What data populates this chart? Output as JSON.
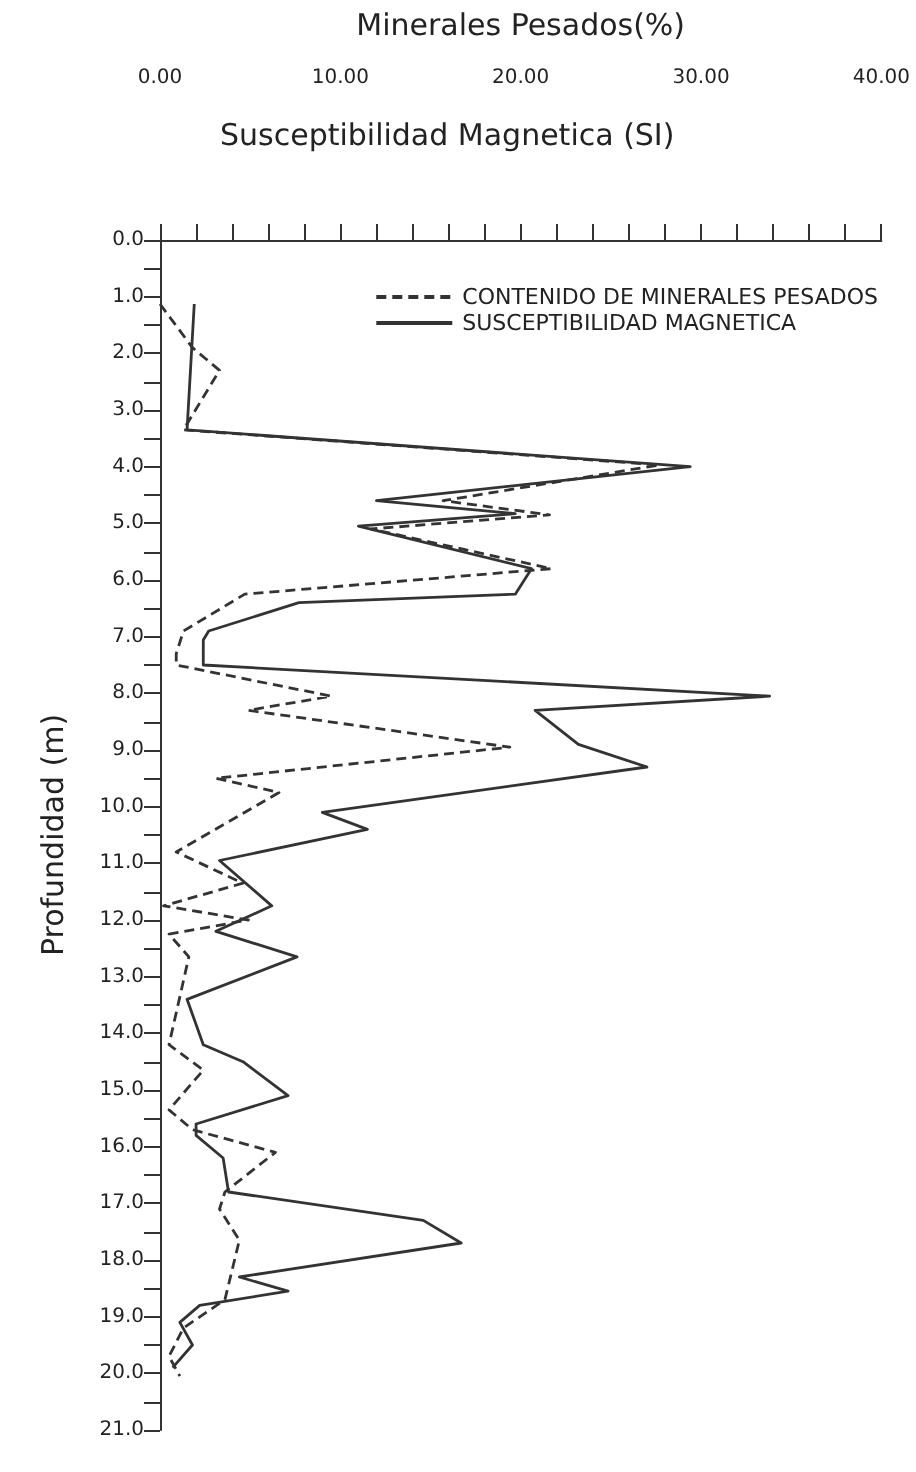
{
  "chart_data": {
    "type": "line",
    "orientation": "horizontal",
    "xlabel": "Minerales Pesados(%)",
    "ylabel": "Profundidad (m)",
    "annotations": [
      "Susceptibilidad Magnetica (SI)"
    ],
    "xlim": [
      0,
      40
    ],
    "ylim": [
      21,
      0
    ],
    "xticks": [
      {
        "value": 0,
        "label": "0.00"
      },
      {
        "value": 2,
        "label": null
      },
      {
        "value": 4,
        "label": null
      },
      {
        "value": 6,
        "label": null
      },
      {
        "value": 8,
        "label": null
      },
      {
        "value": 10,
        "label": "10.00"
      },
      {
        "value": 12,
        "label": null
      },
      {
        "value": 14,
        "label": null
      },
      {
        "value": 16,
        "label": null
      },
      {
        "value": 18,
        "label": null
      },
      {
        "value": 20,
        "label": "20.00"
      },
      {
        "value": 22,
        "label": null
      },
      {
        "value": 24,
        "label": null
      },
      {
        "value": 26,
        "label": null
      },
      {
        "value": 28,
        "label": null
      },
      {
        "value": 30,
        "label": "30.00"
      },
      {
        "value": 32,
        "label": null
      },
      {
        "value": 34,
        "label": null
      },
      {
        "value": 36,
        "label": null
      },
      {
        "value": 38,
        "label": null
      },
      {
        "value": 40,
        "label": "40.00"
      }
    ],
    "yticks": [
      {
        "value": 0,
        "label": "0.0"
      },
      {
        "value": 0.5,
        "label": null
      },
      {
        "value": 1,
        "label": "1.0"
      },
      {
        "value": 1.5,
        "label": null
      },
      {
        "value": 2,
        "label": "2.0"
      },
      {
        "value": 2.5,
        "label": null
      },
      {
        "value": 3,
        "label": "3.0"
      },
      {
        "value": 3.5,
        "label": null
      },
      {
        "value": 4,
        "label": "4.0"
      },
      {
        "value": 4.5,
        "label": null
      },
      {
        "value": 5,
        "label": "5.0"
      },
      {
        "value": 5.5,
        "label": null
      },
      {
        "value": 6,
        "label": "6.0"
      },
      {
        "value": 6.5,
        "label": null
      },
      {
        "value": 7,
        "label": "7.0"
      },
      {
        "value": 7.5,
        "label": null
      },
      {
        "value": 8,
        "label": "8.0"
      },
      {
        "value": 8.5,
        "label": null
      },
      {
        "value": 9,
        "label": "9.0"
      },
      {
        "value": 9.5,
        "label": null
      },
      {
        "value": 10,
        "label": "10.0"
      },
      {
        "value": 10.5,
        "label": null
      },
      {
        "value": 11,
        "label": "11.0"
      },
      {
        "value": 11.5,
        "label": null
      },
      {
        "value": 12,
        "label": "12.0"
      },
      {
        "value": 12.5,
        "label": null
      },
      {
        "value": 13,
        "label": "13.0"
      },
      {
        "value": 13.5,
        "label": null
      },
      {
        "value": 14,
        "label": "14.0"
      },
      {
        "value": 14.5,
        "label": null
      },
      {
        "value": 15,
        "label": "15.0"
      },
      {
        "value": 15.5,
        "label": null
      },
      {
        "value": 16,
        "label": "16.0"
      },
      {
        "value": 16.5,
        "label": null
      },
      {
        "value": 17,
        "label": "17.0"
      },
      {
        "value": 17.5,
        "label": null
      },
      {
        "value": 18,
        "label": "18.0"
      },
      {
        "value": 18.5,
        "label": null
      },
      {
        "value": 19,
        "label": "19.0"
      },
      {
        "value": 19.5,
        "label": null
      },
      {
        "value": 20,
        "label": "20.0"
      },
      {
        "value": 20.5,
        "label": null
      },
      {
        "value": 21,
        "label": "21.0"
      }
    ],
    "legend": "top right",
    "marker": "none",
    "grid": false,
    "series": [
      {
        "name": "CONTENIDO DE MINERALES PESADOS",
        "color": "#333333",
        "line_style": "dashed",
        "x": [
          1.13,
          1.9,
          2.3,
          3.35,
          3.97,
          4.6,
          4.85,
          5.1,
          5.8,
          6.25,
          6.9,
          7.3,
          7.5,
          8.05,
          8.3,
          8.95,
          9.5,
          9.75,
          10.8,
          11.35,
          11.75,
          12.0,
          12.25,
          12.65,
          14.2,
          14.65,
          15.35,
          15.7,
          16.1,
          16.8,
          17.1,
          17.65,
          18.7,
          19.2,
          19.7,
          20.05
        ],
        "values": [
          0,
          1.8,
          3.3,
          1.3,
          27.7,
          15.7,
          21.6,
          11.7,
          21.7,
          4.7,
          1.3,
          0.9,
          0.9,
          9.5,
          4.9,
          19.4,
          3.1,
          6.6,
          0.9,
          4.6,
          0.2,
          4.9,
          0.5,
          1.6,
          0.5,
          2.4,
          0.5,
          1.8,
          6.4,
          3.6,
          3.3,
          4.4,
          3.6,
          1.3,
          0.5,
          1.1
        ]
      },
      {
        "name": "SUSCEPTIBILIDAD MAGNETICA",
        "color": "#333333",
        "line_style": "solid",
        "x": [
          1.13,
          3.35,
          4.0,
          4.6,
          4.83,
          5.05,
          5.8,
          6.25,
          6.4,
          6.9,
          7.06,
          7.5,
          8.05,
          8.3,
          8.9,
          9.3,
          10.1,
          10.4,
          10.95,
          11.75,
          12.2,
          12.65,
          13.4,
          14.2,
          14.5,
          15.1,
          15.6,
          15.8,
          16.2,
          16.8,
          17.3,
          17.7,
          18.3,
          18.55,
          18.8,
          19.1,
          19.5,
          19.9
        ],
        "values": [
          1.9,
          1.5,
          29.4,
          12,
          19.7,
          11,
          20.6,
          19.7,
          7.7,
          2.7,
          2.4,
          2.4,
          33.8,
          20.8,
          23.2,
          27,
          9,
          11.5,
          3.3,
          6.2,
          3.1,
          7.6,
          1.5,
          2.4,
          4.6,
          7.1,
          2,
          2,
          3.5,
          3.8,
          14.6,
          16.7,
          4.4,
          7.1,
          2.2,
          1.1,
          1.8,
          0.7
        ]
      }
    ]
  }
}
